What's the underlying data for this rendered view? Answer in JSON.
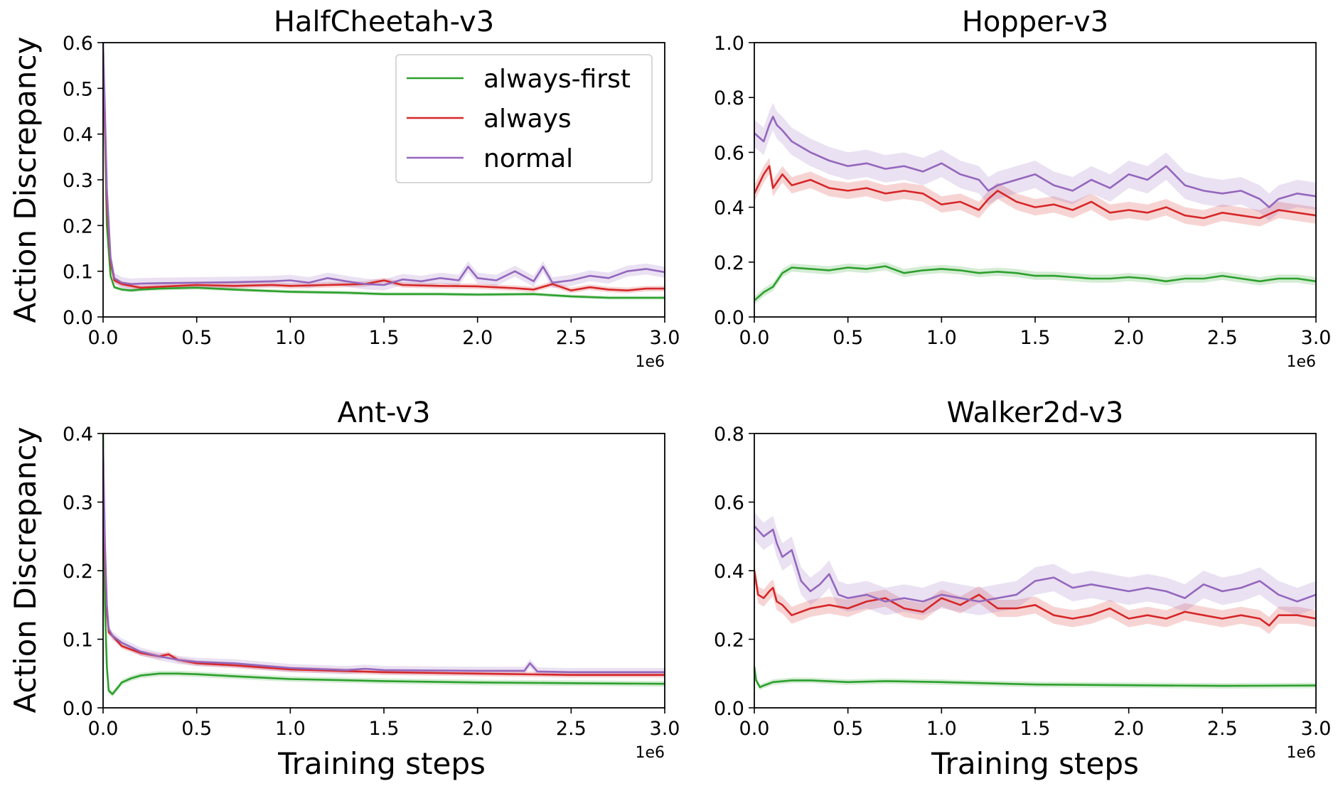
{
  "figure": {
    "ylabel": "Action Discrepancy",
    "xlabel": "Training steps",
    "x_offset_label": "1e6",
    "legend": [
      {
        "label": "always-first",
        "color": "#2ca02c"
      },
      {
        "label": "always",
        "color": "#d62728"
      },
      {
        "label": "normal",
        "color": "#9467bd"
      }
    ]
  },
  "chart_data": [
    {
      "type": "line",
      "title": "HalfCheetah-v3",
      "xlim": [
        0,
        3.0
      ],
      "ylim": [
        0,
        0.6
      ],
      "xticks": [
        "0.0",
        "0.5",
        "1.0",
        "1.5",
        "2.0",
        "2.5",
        "3.0"
      ],
      "yticks": [
        "0.0",
        "0.1",
        "0.2",
        "0.3",
        "0.4",
        "0.5",
        "0.6"
      ],
      "legend_location": "upper right",
      "series": [
        {
          "name": "always-first",
          "color": "#2ca02c",
          "band": 0.004,
          "x": [
            0,
            0.01,
            0.02,
            0.04,
            0.06,
            0.1,
            0.15,
            0.2,
            0.3,
            0.5,
            0.7,
            1.0,
            1.3,
            1.5,
            1.8,
            2.0,
            2.3,
            2.5,
            2.7,
            3.0
          ],
          "y": [
            0.6,
            0.4,
            0.2,
            0.09,
            0.065,
            0.06,
            0.058,
            0.06,
            0.062,
            0.064,
            0.06,
            0.055,
            0.053,
            0.05,
            0.05,
            0.049,
            0.05,
            0.045,
            0.042,
            0.042
          ]
        },
        {
          "name": "always",
          "color": "#d62728",
          "band": 0.006,
          "x": [
            0,
            0.01,
            0.02,
            0.04,
            0.06,
            0.1,
            0.15,
            0.2,
            0.3,
            0.5,
            0.7,
            0.9,
            1.0,
            1.2,
            1.4,
            1.5,
            1.6,
            1.8,
            2.0,
            2.2,
            2.3,
            2.4,
            2.5,
            2.6,
            2.7,
            2.8,
            2.9,
            3.0
          ],
          "y": [
            0.55,
            0.42,
            0.25,
            0.12,
            0.08,
            0.072,
            0.068,
            0.064,
            0.066,
            0.07,
            0.068,
            0.07,
            0.068,
            0.07,
            0.072,
            0.08,
            0.07,
            0.068,
            0.067,
            0.063,
            0.06,
            0.072,
            0.058,
            0.065,
            0.06,
            0.058,
            0.062,
            0.062
          ]
        },
        {
          "name": "normal",
          "color": "#9467bd",
          "band": 0.012,
          "x": [
            0,
            0.01,
            0.02,
            0.04,
            0.06,
            0.1,
            0.15,
            0.2,
            0.3,
            0.5,
            0.7,
            0.9,
            1.0,
            1.1,
            1.2,
            1.3,
            1.4,
            1.5,
            1.6,
            1.7,
            1.8,
            1.9,
            1.95,
            2.0,
            2.1,
            2.2,
            2.3,
            2.35,
            2.4,
            2.5,
            2.6,
            2.7,
            2.8,
            2.9,
            3.0
          ],
          "y": [
            0.6,
            0.45,
            0.28,
            0.13,
            0.085,
            0.075,
            0.072,
            0.073,
            0.074,
            0.075,
            0.076,
            0.078,
            0.08,
            0.075,
            0.085,
            0.078,
            0.072,
            0.07,
            0.082,
            0.078,
            0.085,
            0.08,
            0.11,
            0.085,
            0.08,
            0.1,
            0.078,
            0.11,
            0.075,
            0.08,
            0.09,
            0.085,
            0.1,
            0.105,
            0.098
          ]
        }
      ]
    },
    {
      "type": "line",
      "title": "Hopper-v3",
      "xlim": [
        0,
        3.0
      ],
      "ylim": [
        0,
        1.0
      ],
      "xticks": [
        "0.0",
        "0.5",
        "1.0",
        "1.5",
        "2.0",
        "2.5",
        "3.0"
      ],
      "yticks": [
        "0.0",
        "0.2",
        "0.4",
        "0.6",
        "0.8",
        "1.0"
      ],
      "series": [
        {
          "name": "always-first",
          "color": "#2ca02c",
          "band": 0.015,
          "x": [
            0,
            0.05,
            0.1,
            0.15,
            0.2,
            0.3,
            0.4,
            0.5,
            0.6,
            0.7,
            0.8,
            0.9,
            1.0,
            1.1,
            1.2,
            1.3,
            1.4,
            1.5,
            1.6,
            1.7,
            1.8,
            1.9,
            2.0,
            2.1,
            2.2,
            2.3,
            2.4,
            2.5,
            2.6,
            2.7,
            2.8,
            2.9,
            3.0
          ],
          "y": [
            0.06,
            0.09,
            0.11,
            0.16,
            0.18,
            0.175,
            0.17,
            0.18,
            0.175,
            0.185,
            0.16,
            0.17,
            0.175,
            0.17,
            0.16,
            0.165,
            0.16,
            0.15,
            0.15,
            0.145,
            0.14,
            0.14,
            0.145,
            0.14,
            0.13,
            0.14,
            0.14,
            0.15,
            0.14,
            0.13,
            0.14,
            0.14,
            0.13
          ]
        },
        {
          "name": "always",
          "color": "#d62728",
          "band": 0.03,
          "x": [
            0,
            0.05,
            0.08,
            0.1,
            0.15,
            0.2,
            0.3,
            0.4,
            0.5,
            0.6,
            0.7,
            0.8,
            0.9,
            1.0,
            1.1,
            1.2,
            1.25,
            1.3,
            1.4,
            1.5,
            1.6,
            1.7,
            1.8,
            1.9,
            2.0,
            2.1,
            2.2,
            2.3,
            2.4,
            2.5,
            2.6,
            2.7,
            2.8,
            2.9,
            3.0
          ],
          "y": [
            0.45,
            0.52,
            0.55,
            0.47,
            0.52,
            0.48,
            0.5,
            0.47,
            0.46,
            0.47,
            0.45,
            0.46,
            0.45,
            0.41,
            0.42,
            0.39,
            0.43,
            0.46,
            0.42,
            0.4,
            0.41,
            0.39,
            0.42,
            0.38,
            0.39,
            0.38,
            0.4,
            0.37,
            0.36,
            0.38,
            0.37,
            0.36,
            0.39,
            0.38,
            0.37
          ]
        },
        {
          "name": "normal",
          "color": "#9467bd",
          "band": 0.05,
          "x": [
            0,
            0.05,
            0.08,
            0.1,
            0.12,
            0.15,
            0.2,
            0.3,
            0.4,
            0.5,
            0.6,
            0.7,
            0.8,
            0.9,
            1.0,
            1.1,
            1.2,
            1.25,
            1.3,
            1.4,
            1.5,
            1.6,
            1.7,
            1.8,
            1.9,
            2.0,
            2.1,
            2.2,
            2.3,
            2.4,
            2.5,
            2.6,
            2.7,
            2.75,
            2.8,
            2.9,
            3.0
          ],
          "y": [
            0.67,
            0.64,
            0.7,
            0.73,
            0.7,
            0.68,
            0.64,
            0.6,
            0.57,
            0.55,
            0.56,
            0.54,
            0.55,
            0.53,
            0.56,
            0.52,
            0.5,
            0.46,
            0.48,
            0.5,
            0.52,
            0.48,
            0.46,
            0.5,
            0.47,
            0.52,
            0.5,
            0.55,
            0.48,
            0.46,
            0.45,
            0.46,
            0.43,
            0.4,
            0.43,
            0.45,
            0.44
          ]
        }
      ]
    },
    {
      "type": "line",
      "title": "Ant-v3",
      "xlim": [
        0,
        3.0
      ],
      "ylim": [
        0,
        0.4
      ],
      "xticks": [
        "0.0",
        "0.5",
        "1.0",
        "1.5",
        "2.0",
        "2.5",
        "3.0"
      ],
      "yticks": [
        "0.0",
        "0.1",
        "0.2",
        "0.3",
        "0.4"
      ],
      "series": [
        {
          "name": "always-first",
          "color": "#2ca02c",
          "band": 0.004,
          "x": [
            0,
            0.01,
            0.02,
            0.03,
            0.05,
            0.08,
            0.1,
            0.15,
            0.2,
            0.3,
            0.4,
            0.5,
            0.7,
            1.0,
            1.5,
            2.0,
            2.5,
            3.0
          ],
          "y": [
            0.4,
            0.15,
            0.06,
            0.025,
            0.02,
            0.03,
            0.037,
            0.043,
            0.047,
            0.05,
            0.05,
            0.049,
            0.046,
            0.042,
            0.039,
            0.037,
            0.036,
            0.035
          ]
        },
        {
          "name": "always",
          "color": "#d62728",
          "band": 0.004,
          "x": [
            0,
            0.01,
            0.02,
            0.03,
            0.05,
            0.1,
            0.2,
            0.3,
            0.35,
            0.4,
            0.5,
            0.7,
            1.0,
            1.5,
            2.0,
            2.5,
            3.0
          ],
          "y": [
            0.36,
            0.22,
            0.14,
            0.11,
            0.105,
            0.09,
            0.08,
            0.075,
            0.078,
            0.07,
            0.065,
            0.062,
            0.056,
            0.052,
            0.05,
            0.048,
            0.048
          ]
        },
        {
          "name": "normal",
          "color": "#9467bd",
          "band": 0.006,
          "x": [
            0,
            0.01,
            0.02,
            0.03,
            0.05,
            0.1,
            0.2,
            0.3,
            0.4,
            0.5,
            0.7,
            1.0,
            1.3,
            1.4,
            1.5,
            2.0,
            2.25,
            2.28,
            2.32,
            2.5,
            3.0
          ],
          "y": [
            0.38,
            0.24,
            0.15,
            0.115,
            0.105,
            0.095,
            0.082,
            0.075,
            0.07,
            0.067,
            0.065,
            0.058,
            0.055,
            0.057,
            0.055,
            0.054,
            0.054,
            0.065,
            0.053,
            0.052,
            0.052
          ]
        }
      ]
    },
    {
      "type": "line",
      "title": "Walker2d-v3",
      "xlim": [
        0,
        3.0
      ],
      "ylim": [
        0,
        0.8
      ],
      "xticks": [
        "0.0",
        "0.5",
        "1.0",
        "1.5",
        "2.0",
        "2.5",
        "3.0"
      ],
      "yticks": [
        "0.0",
        "0.2",
        "0.4",
        "0.6",
        "0.8"
      ],
      "series": [
        {
          "name": "always-first",
          "color": "#2ca02c",
          "band": 0.008,
          "x": [
            0,
            0.01,
            0.03,
            0.05,
            0.1,
            0.2,
            0.3,
            0.5,
            0.7,
            1.0,
            1.5,
            2.0,
            2.5,
            3.0
          ],
          "y": [
            0.12,
            0.08,
            0.06,
            0.065,
            0.075,
            0.08,
            0.08,
            0.075,
            0.078,
            0.075,
            0.068,
            0.066,
            0.064,
            0.065
          ]
        },
        {
          "name": "always",
          "color": "#d62728",
          "band": 0.025,
          "x": [
            0,
            0.02,
            0.05,
            0.08,
            0.1,
            0.12,
            0.15,
            0.2,
            0.3,
            0.4,
            0.5,
            0.6,
            0.7,
            0.8,
            0.9,
            1.0,
            1.1,
            1.2,
            1.3,
            1.4,
            1.5,
            1.6,
            1.7,
            1.8,
            1.9,
            2.0,
            2.1,
            2.2,
            2.3,
            2.4,
            2.5,
            2.6,
            2.7,
            2.75,
            2.8,
            2.9,
            3.0
          ],
          "y": [
            0.4,
            0.33,
            0.32,
            0.34,
            0.35,
            0.31,
            0.3,
            0.27,
            0.29,
            0.3,
            0.29,
            0.31,
            0.32,
            0.29,
            0.28,
            0.32,
            0.3,
            0.33,
            0.29,
            0.29,
            0.3,
            0.27,
            0.26,
            0.27,
            0.29,
            0.26,
            0.27,
            0.26,
            0.28,
            0.27,
            0.26,
            0.27,
            0.26,
            0.24,
            0.27,
            0.27,
            0.26
          ]
        },
        {
          "name": "normal",
          "color": "#9467bd",
          "band": 0.04,
          "x": [
            0,
            0.05,
            0.1,
            0.12,
            0.15,
            0.2,
            0.25,
            0.3,
            0.35,
            0.4,
            0.45,
            0.5,
            0.6,
            0.7,
            0.8,
            0.9,
            1.0,
            1.1,
            1.2,
            1.3,
            1.4,
            1.5,
            1.6,
            1.7,
            1.8,
            1.9,
            2.0,
            2.1,
            2.2,
            2.3,
            2.4,
            2.5,
            2.6,
            2.7,
            2.8,
            2.9,
            3.0
          ],
          "y": [
            0.53,
            0.5,
            0.52,
            0.48,
            0.44,
            0.46,
            0.37,
            0.34,
            0.36,
            0.39,
            0.33,
            0.32,
            0.33,
            0.31,
            0.32,
            0.31,
            0.33,
            0.32,
            0.31,
            0.32,
            0.33,
            0.37,
            0.38,
            0.35,
            0.36,
            0.35,
            0.34,
            0.35,
            0.34,
            0.32,
            0.36,
            0.34,
            0.35,
            0.37,
            0.33,
            0.31,
            0.33
          ]
        }
      ]
    }
  ]
}
